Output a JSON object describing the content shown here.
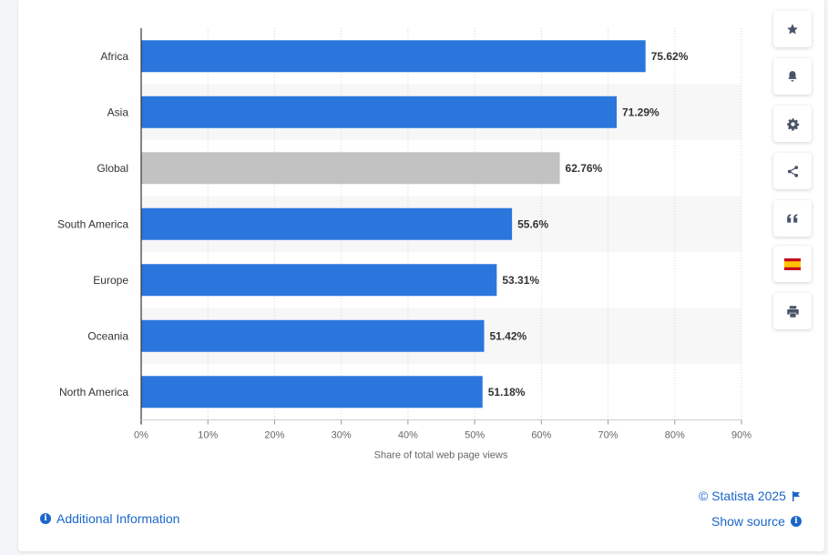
{
  "chart_data": {
    "type": "bar",
    "orientation": "horizontal",
    "categories": [
      "Africa",
      "Asia",
      "Global",
      "South America",
      "Europe",
      "Oceania",
      "North America"
    ],
    "values": [
      75.62,
      71.29,
      62.76,
      55.6,
      53.31,
      51.42,
      51.18
    ],
    "value_labels": [
      "75.62%",
      "71.29%",
      "62.76%",
      "55.6%",
      "53.31%",
      "51.42%",
      "51.18%"
    ],
    "highlight_category": "Global",
    "xlabel": "Share of total web page views",
    "ylabel": "",
    "xlim": [
      0,
      90
    ],
    "x_ticks": [
      "0%",
      "10%",
      "20%",
      "30%",
      "40%",
      "50%",
      "60%",
      "70%",
      "80%",
      "90%"
    ],
    "grid": "vertical dotted",
    "colors": {
      "bar": "#2a76dd",
      "highlight": "#c2c2c2",
      "stripe": "#f7f7f7",
      "label": "#333333",
      "tick": "#666666"
    }
  },
  "sidebar": {
    "buttons": [
      {
        "name": "favorite-button",
        "icon": "star-icon"
      },
      {
        "name": "notification-button",
        "icon": "bell-icon"
      },
      {
        "name": "settings-button",
        "icon": "gear-icon"
      },
      {
        "name": "share-button",
        "icon": "share-icon"
      },
      {
        "name": "citation-button",
        "icon": "quote-icon"
      },
      {
        "name": "language-button",
        "icon": "spain-flag-icon"
      },
      {
        "name": "print-button",
        "icon": "printer-icon"
      }
    ]
  },
  "footer": {
    "additional_info": "Additional Information",
    "copyright": "© Statista 2025",
    "show_source": "Show source"
  }
}
